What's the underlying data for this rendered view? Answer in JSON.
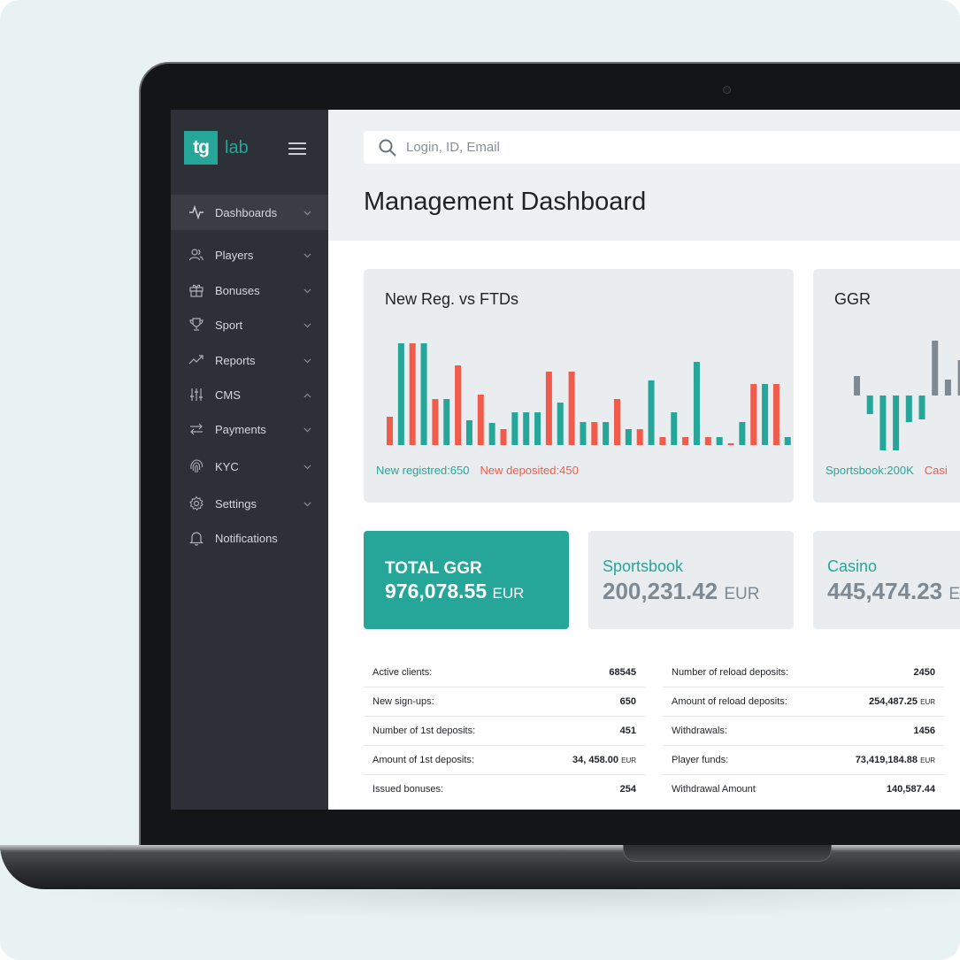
{
  "brand": {
    "logo_mark": "tg",
    "logo_text": "lab",
    "accent": "#25a699",
    "secondary": "#f15b4c"
  },
  "sidebar": {
    "items": [
      {
        "label": "Dashboards",
        "icon": "activity-icon",
        "chevron": "down",
        "active": true
      },
      {
        "label": "Players",
        "icon": "users-icon",
        "chevron": "down"
      },
      {
        "label": "Bonuses",
        "icon": "gift-icon",
        "chevron": "down"
      },
      {
        "label": "Sport",
        "icon": "trophy-icon",
        "chevron": "down"
      },
      {
        "label": "Reports",
        "icon": "trending-up-icon",
        "chevron": "down"
      },
      {
        "label": "CMS",
        "icon": "sliders-icon",
        "chevron": "up"
      },
      {
        "label": "Payments",
        "icon": "transfer-icon",
        "chevron": "down"
      },
      {
        "label": "KYC",
        "icon": "fingerprint-icon",
        "chevron": "down"
      },
      {
        "label": "Settings",
        "icon": "gear-icon",
        "chevron": "down"
      },
      {
        "label": "Notifications",
        "icon": "bell-icon",
        "chevron": "none"
      }
    ]
  },
  "search": {
    "placeholder": "Login, ID, Email"
  },
  "page": {
    "title": "Management Dashboard"
  },
  "charts": {
    "reg_vs_ftd": {
      "title": "New Reg. vs FTDs",
      "legend_a": "New registred:650",
      "legend_b": "New deposited:450"
    },
    "ggr": {
      "title": "GGR",
      "legend_a": "Sportsbook:200K",
      "legend_b": "Casi"
    }
  },
  "chart_data": [
    {
      "type": "bar",
      "title": "New Reg. vs FTDs",
      "series": [
        {
          "name": "New registred",
          "color": "#25a699"
        },
        {
          "name": "New deposited",
          "color": "#f15b4c"
        }
      ],
      "bars": [
        {
          "s": 1,
          "v": 32
        },
        {
          "s": 0,
          "v": 115
        },
        {
          "s": 1,
          "v": 115
        },
        {
          "s": 0,
          "v": 115
        },
        {
          "s": 1,
          "v": 52
        },
        {
          "s": 0,
          "v": 52
        },
        {
          "s": 1,
          "v": 90
        },
        {
          "s": 0,
          "v": 28
        },
        {
          "s": 1,
          "v": 57
        },
        {
          "s": 0,
          "v": 25
        },
        {
          "s": 1,
          "v": 18
        },
        {
          "s": 0,
          "v": 37
        },
        {
          "s": 0,
          "v": 37
        },
        {
          "s": 0,
          "v": 37
        },
        {
          "s": 1,
          "v": 83
        },
        {
          "s": 0,
          "v": 48
        },
        {
          "s": 1,
          "v": 83
        },
        {
          "s": 0,
          "v": 26
        },
        {
          "s": 1,
          "v": 26
        },
        {
          "s": 0,
          "v": 26
        },
        {
          "s": 1,
          "v": 52
        },
        {
          "s": 0,
          "v": 18
        },
        {
          "s": 1,
          "v": 18
        },
        {
          "s": 0,
          "v": 73
        },
        {
          "s": 1,
          "v": 9
        },
        {
          "s": 0,
          "v": 37
        },
        {
          "s": 1,
          "v": 9
        },
        {
          "s": 0,
          "v": 94
        },
        {
          "s": 1,
          "v": 9
        },
        {
          "s": 0,
          "v": 9
        },
        {
          "s": 1,
          "v": 2
        },
        {
          "s": 0,
          "v": 26
        },
        {
          "s": 1,
          "v": 69
        },
        {
          "s": 0,
          "v": 69
        },
        {
          "s": 1,
          "v": 69
        },
        {
          "s": 0,
          "v": 9
        }
      ]
    },
    {
      "type": "bar",
      "title": "GGR",
      "series": [
        {
          "name": "Sportsbook",
          "color": "#25a699"
        }
      ],
      "bars": [
        {
          "c": "grey",
          "v": 22
        },
        {
          "c": "teal",
          "v": -21
        },
        {
          "c": "teal",
          "v": -62
        },
        {
          "c": "teal",
          "v": -62
        },
        {
          "c": "teal",
          "v": -30
        },
        {
          "c": "teal",
          "v": -27
        },
        {
          "c": "grey",
          "v": 62
        },
        {
          "c": "grey",
          "v": 18
        },
        {
          "c": "grey",
          "v": 40
        }
      ]
    }
  ],
  "kpis": {
    "total": {
      "title": "TOTAL GGR",
      "value": "976,078.55",
      "unit": "EUR"
    },
    "sportsbook": {
      "title": "Sportsbook",
      "value": "200,231.42",
      "unit": "EUR"
    },
    "casino": {
      "title": "Casino",
      "value": "445,474.23",
      "unit": "E"
    }
  },
  "table_left": [
    {
      "k": "Active clients:",
      "v": "68545",
      "cur": ""
    },
    {
      "k": "New sign-ups:",
      "v": "650",
      "cur": ""
    },
    {
      "k": "Number of 1st deposits:",
      "v": "451",
      "cur": ""
    },
    {
      "k": "Amount of 1st deposits:",
      "v": "34, 458.00",
      "cur": "EUR"
    },
    {
      "k": "Issued bonuses:",
      "v": "254",
      "cur": ""
    }
  ],
  "table_right": [
    {
      "k": "Number of reload deposits:",
      "v": "2450",
      "cur": ""
    },
    {
      "k": "Amount of reload deposits:",
      "v": "254,487.25",
      "cur": "EUR"
    },
    {
      "k": "Withdrawals:",
      "v": "1456",
      "cur": ""
    },
    {
      "k": "Player funds:",
      "v": "73,419,184.88",
      "cur": "EUR"
    },
    {
      "k": "Withdrawal Amount",
      "v": "140,587.44",
      "cur": ""
    }
  ]
}
